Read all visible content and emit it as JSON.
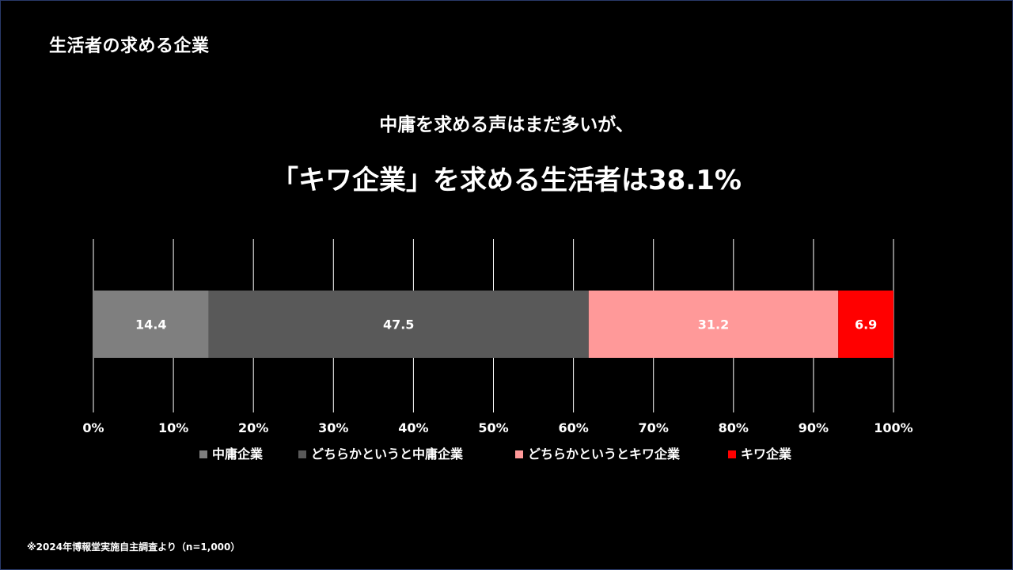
{
  "slide": {
    "title": "生活者の求める企業",
    "headline_line1": "中庸を求める声はまだ多いが、",
    "headline_line2": "「キワ企業」を求める生活者は38.1%",
    "footnote": "※2024年博報堂実施自主調査より（n=1,000）"
  },
  "colors": {
    "background": "#000000",
    "gridline": "#ffffff",
    "text": "#ffffff"
  },
  "chart_data": {
    "type": "bar",
    "orientation": "horizontal",
    "stacked": "percent",
    "xlim": [
      0,
      100
    ],
    "x_ticks": [
      "0%",
      "10%",
      "20%",
      "30%",
      "40%",
      "50%",
      "60%",
      "70%",
      "80%",
      "90%",
      "100%"
    ],
    "grid": true,
    "legend_position": "bottom",
    "series": [
      {
        "name": "中庸企業",
        "value": 14.4,
        "label": "14.4",
        "color": "#7f7f7f"
      },
      {
        "name": "どちらかというと中庸企業",
        "value": 47.5,
        "label": "47.5",
        "color": "#595959"
      },
      {
        "name": "どちらかというとキワ企業",
        "value": 31.2,
        "label": "31.2",
        "color": "#ff9999"
      },
      {
        "name": "キワ企業",
        "value": 6.9,
        "label": "6.9",
        "color": "#ff0000"
      }
    ]
  }
}
